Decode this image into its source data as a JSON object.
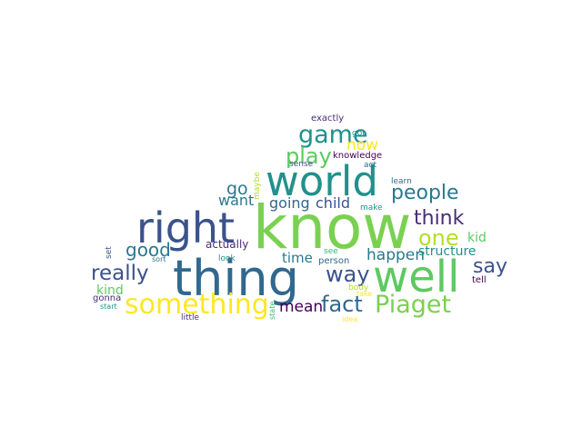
{
  "words": {
    "know": {
      "text": "know",
      "color": "#7ad151"
    },
    "thing": {
      "text": "thing",
      "color": "#31688e"
    },
    "well": {
      "text": "well",
      "color": "#5ec962"
    },
    "world": {
      "text": "world",
      "color": "#21918c"
    },
    "right": {
      "text": "right",
      "color": "#3b528b"
    },
    "something": {
      "text": "something",
      "color": "#fde725"
    },
    "Piaget": {
      "text": "Piaget",
      "color": "#7ad151"
    },
    "game": {
      "text": "game",
      "color": "#21918c"
    },
    "play": {
      "text": "play",
      "color": "#5ec962"
    },
    "people": {
      "text": "people",
      "color": "#2a788e"
    },
    "think": {
      "text": "think",
      "color": "#472d7b"
    },
    "one": {
      "text": "one",
      "color": "#b5de2b"
    },
    "really": {
      "text": "really",
      "color": "#3b528b"
    },
    "way": {
      "text": "way",
      "color": "#3b528b"
    },
    "fact": {
      "text": "fact",
      "color": "#31688e"
    },
    "good": {
      "text": "good",
      "color": "#2a788e"
    },
    "say": {
      "text": "say",
      "color": "#3b528b"
    },
    "happen": {
      "text": "happen",
      "color": "#2a788e"
    },
    "mean": {
      "text": "mean",
      "color": "#440154"
    },
    "now": {
      "text": "now",
      "color": "#fde725"
    },
    "go": {
      "text": "go",
      "color": "#2a788e"
    },
    "want": {
      "text": "want",
      "color": "#2a788e"
    },
    "going": {
      "text": "going",
      "color": "#31688e"
    },
    "child": {
      "text": "child",
      "color": "#3b528b"
    },
    "kid": {
      "text": "kid",
      "color": "#5ec962"
    },
    "structure": {
      "text": "structure",
      "color": "#21918c"
    },
    "kind": {
      "text": "kind",
      "color": "#5ec962"
    },
    "time": {
      "text": "time",
      "color": "#2a788e"
    },
    "actually": {
      "text": "actually",
      "color": "#472d7b"
    },
    "exactly": {
      "text": "exactly",
      "color": "#472d7b"
    },
    "got": {
      "text": "got",
      "color": "#21918c"
    },
    "knowledge": {
      "text": "knowledge",
      "color": "#440154"
    },
    "sense": {
      "text": "sense",
      "color": "#3b528b"
    },
    "act": {
      "text": "act",
      "color": "#31688e"
    },
    "learn": {
      "text": "learn",
      "color": "#31688e"
    },
    "make": {
      "text": "make",
      "color": "#21918c"
    },
    "maybe": {
      "text": "maybe",
      "color": "#b5de2b"
    },
    "see": {
      "text": "see",
      "color": "#35b779"
    },
    "person": {
      "text": "person",
      "color": "#31688e"
    },
    "look": {
      "text": "look",
      "color": "#21918c"
    },
    "sort": {
      "text": "sort",
      "color": "#2a788e"
    },
    "set": {
      "text": "set",
      "color": "#3b528b"
    },
    "tell": {
      "text": "tell",
      "color": "#440154"
    },
    "gonna": {
      "text": "gonna",
      "color": "#472d7b"
    },
    "start": {
      "text": "start",
      "color": "#21918c"
    },
    "body": {
      "text": "body",
      "color": "#b5de2b"
    },
    "take": {
      "text": "take",
      "color": "#fde725"
    },
    "state": {
      "text": "state",
      "color": "#35b779"
    },
    "little": {
      "text": "little",
      "color": "#472d7b"
    },
    "idea": {
      "text": "idea",
      "color": "#fde725"
    }
  }
}
